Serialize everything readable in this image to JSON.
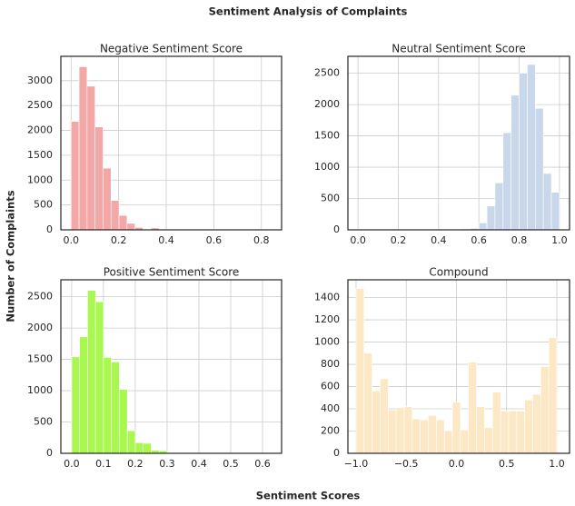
{
  "figure": {
    "title": "Sentiment Analysis of Complaints",
    "xlabel": "Sentiment Scores",
    "ylabel": "Number of Complaints"
  },
  "chart_data": [
    {
      "type": "histogram",
      "title": "Negative Sentiment Score",
      "color": "#f4a7a7",
      "grid": true,
      "bins": [
        0,
        0.0336,
        0.0672,
        0.1008,
        0.1344,
        0.168,
        0.2016,
        0.2352,
        0.2688,
        0.3024,
        0.336,
        0.3696,
        0.4032,
        0.4368,
        0.4704,
        0.504,
        0.5376,
        0.5712,
        0.6048,
        0.6384,
        0.672,
        0.7056,
        0.7392,
        0.7728,
        0.8064,
        0.84
      ],
      "values": [
        2180,
        3280,
        2890,
        2070,
        1240,
        590,
        290,
        130,
        50,
        10,
        40,
        10,
        5,
        3,
        2,
        2,
        1,
        1,
        0,
        0,
        0,
        0,
        0,
        0,
        1
      ],
      "xlim": [
        -0.043,
        0.885
      ],
      "ylim": [
        0,
        3490
      ],
      "xticks": [
        {
          "value": 0,
          "label": "0.0"
        },
        0.2,
        0.4,
        0.6,
        0.8
      ],
      "yticks": [
        0,
        500,
        1000,
        1500,
        2000,
        2500,
        3000
      ]
    },
    {
      "type": "histogram",
      "title": "Neutral Sentiment Score",
      "color": "#c9d7ea",
      "grid": true,
      "bins": [
        0,
        0.04,
        0.08,
        0.12,
        0.16,
        0.2,
        0.24,
        0.28,
        0.32,
        0.36,
        0.4,
        0.44,
        0.48,
        0.52,
        0.56,
        0.6,
        0.64,
        0.68,
        0.72,
        0.76,
        0.8,
        0.84,
        0.88,
        0.92,
        0.96,
        1.0
      ],
      "values": [
        10,
        0,
        1,
        1,
        2,
        2,
        2,
        3,
        3,
        4,
        5,
        6,
        10,
        15,
        25,
        110,
        380,
        750,
        1550,
        2150,
        2500,
        2640,
        1940,
        900,
        600
      ],
      "xlim": [
        -0.05,
        1.05
      ],
      "ylim": [
        0,
        2770
      ],
      "xticks": [
        {
          "value": 0,
          "label": "0.0"
        },
        0.2,
        0.4,
        0.6,
        0.8,
        {
          "value": 1,
          "label": "1.0"
        }
      ],
      "yticks": [
        0,
        500,
        1000,
        1500,
        2000,
        2500
      ]
    },
    {
      "type": "histogram",
      "title": "Positive Sentiment Score",
      "color": "#a8f850",
      "grid": true,
      "bins": [
        0,
        0.025,
        0.05,
        0.075,
        0.1,
        0.125,
        0.15,
        0.175,
        0.2,
        0.225,
        0.25,
        0.275,
        0.3,
        0.325,
        0.35,
        0.375,
        0.4,
        0.425,
        0.45,
        0.475,
        0.5,
        0.525,
        0.55,
        0.575,
        0.6,
        0.625
      ],
      "values": [
        1540,
        1860,
        2600,
        2420,
        1530,
        1460,
        1020,
        360,
        170,
        160,
        50,
        40,
        10,
        10,
        5,
        5,
        3,
        2,
        2,
        1,
        1,
        0,
        0,
        0,
        1
      ],
      "xlim": [
        -0.034,
        0.66
      ],
      "ylim": [
        0,
        2770
      ],
      "xticks": [
        {
          "value": 0,
          "label": "0.0"
        },
        0.1,
        0.2,
        0.3,
        0.4,
        0.5,
        0.6
      ],
      "yticks": [
        0,
        500,
        1000,
        1500,
        2000,
        2500
      ]
    },
    {
      "type": "histogram",
      "title": "Compound",
      "color": "#fde8c6",
      "grid": true,
      "bins": [
        -1,
        -0.92,
        -0.84,
        -0.76,
        -0.68,
        -0.6,
        -0.52,
        -0.44,
        -0.36,
        -0.28,
        -0.2,
        -0.12,
        -0.04,
        0.04,
        0.12,
        0.2,
        0.28,
        0.36,
        0.44,
        0.52,
        0.6,
        0.68,
        0.76,
        0.84,
        0.92,
        1.0
      ],
      "values": [
        1480,
        900,
        560,
        670,
        390,
        410,
        420,
        310,
        300,
        340,
        300,
        200,
        460,
        210,
        820,
        420,
        230,
        550,
        380,
        380,
        380,
        480,
        530,
        780,
        1040
      ],
      "xlim": [
        -1.081,
        1.127
      ],
      "ylim": [
        0,
        1560
      ],
      "xticks": [
        {
          "value": -1,
          "label": "−1.0"
        },
        {
          "value": -0.5,
          "label": "−0.5"
        },
        {
          "value": 0,
          "label": "0.0"
        },
        0.5,
        {
          "value": 1,
          "label": "1.0"
        }
      ],
      "yticks": [
        0,
        200,
        400,
        600,
        800,
        1000,
        1200,
        1400
      ]
    }
  ]
}
